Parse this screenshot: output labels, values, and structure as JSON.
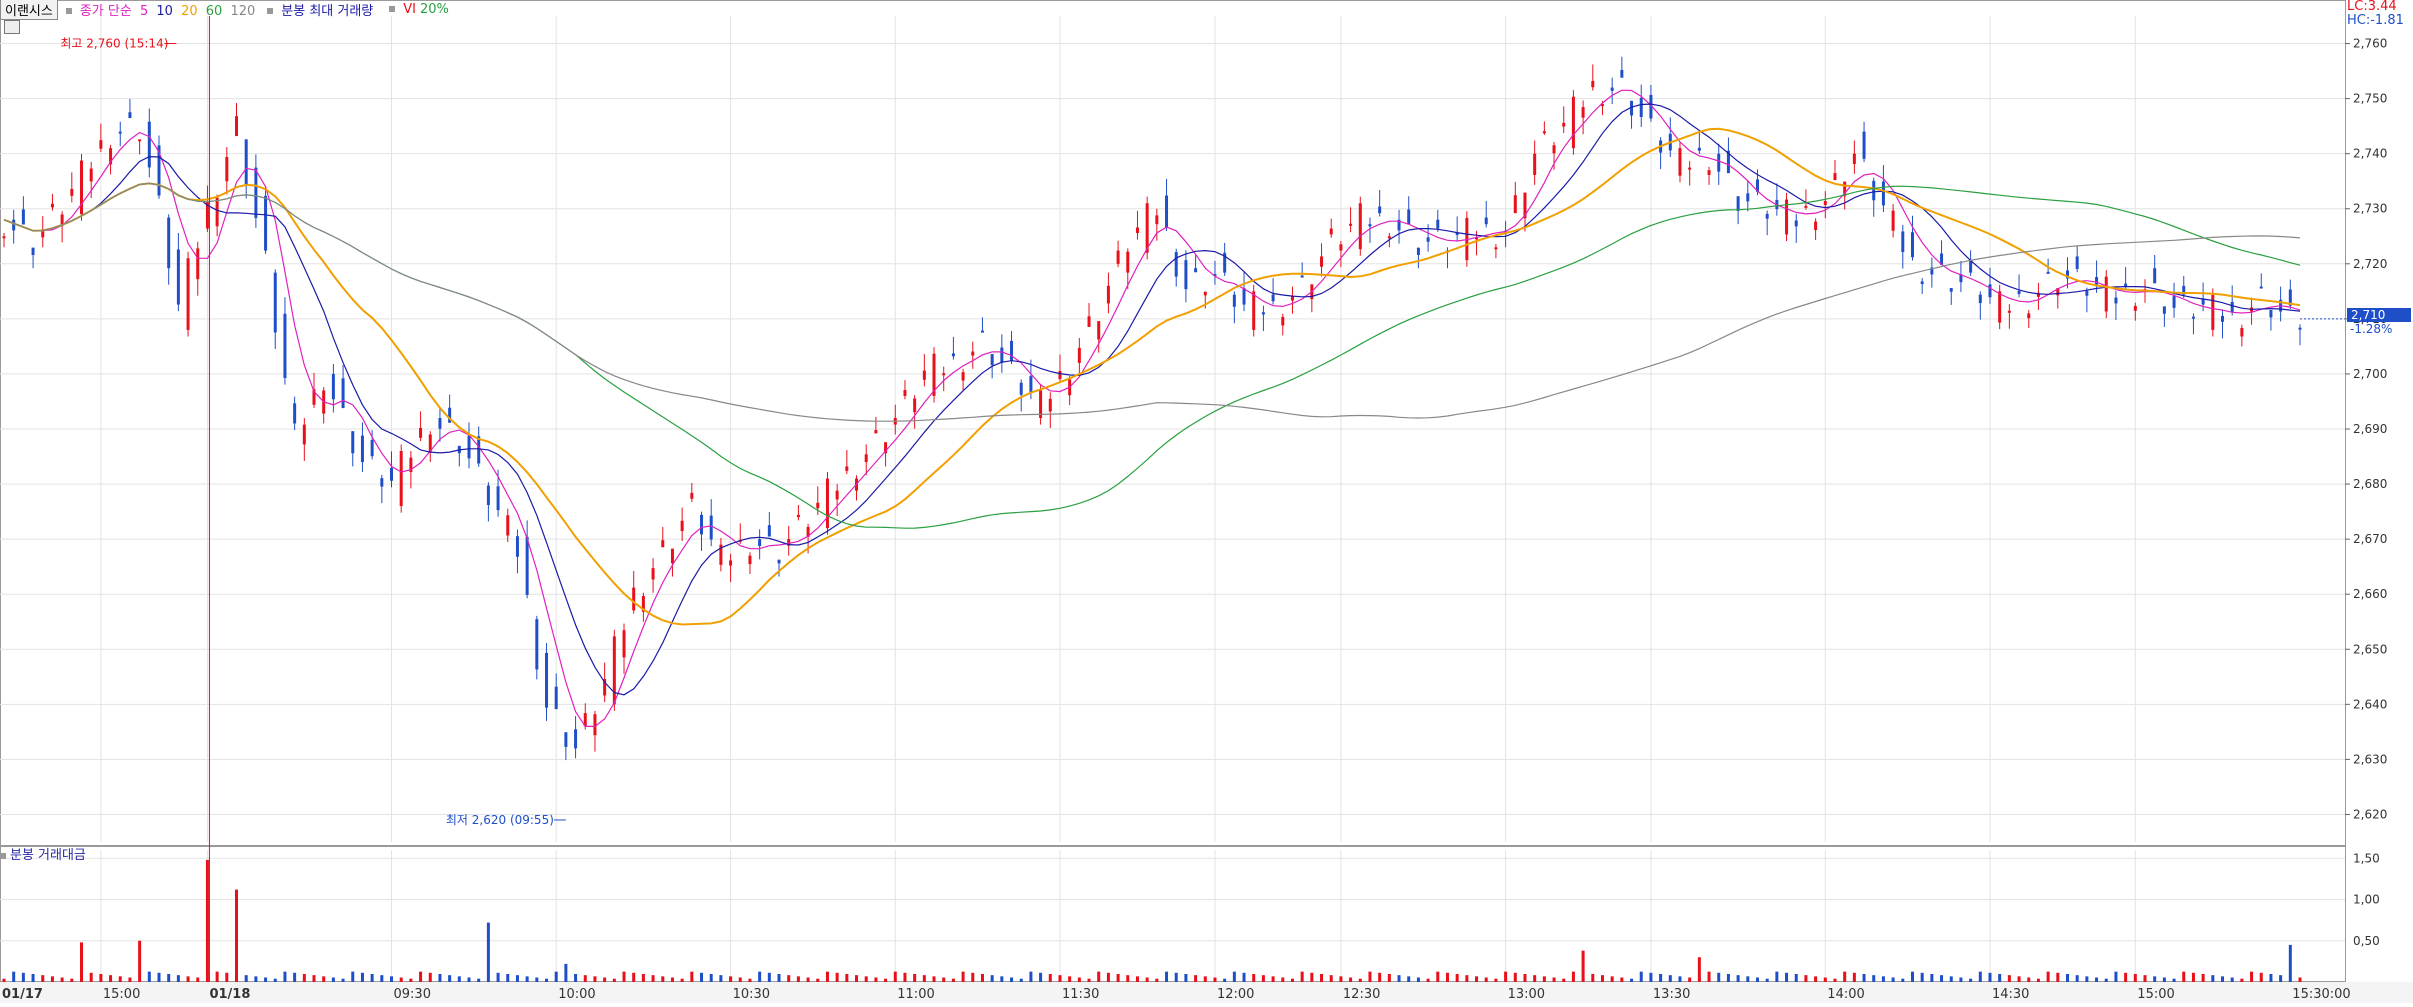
{
  "legend": {
    "name": "이랜시스",
    "ma_label": "종가 단순",
    "ma_periods": [
      "5",
      "10",
      "20",
      "60",
      "120"
    ],
    "ma_colors": [
      "#e020c0",
      "#1a1aa8",
      "#f0a000",
      "#2aa040",
      "#888888"
    ],
    "vol_max_label": "분봉 최대 거래량",
    "vi_label": "VI",
    "vi_value": "20%"
  },
  "volume_legend": "분봉 거래대금",
  "tags": {
    "lc": "LC:3.44",
    "hc": "HC:-1.81"
  },
  "current": {
    "price": "2,710",
    "change": "-1.28%"
  },
  "annotations": {
    "high": "최고 2,760 (15:14)",
    "low": "최저 2,620 (09:55)"
  },
  "colors": {
    "up": "#e8101a",
    "down": "#1f4fc8",
    "grid": "#e3e3e3",
    "vline": "#e8101a",
    "bg": "#ffffff"
  },
  "chart_data": {
    "type": "candlestick",
    "title": "",
    "y_ticks": [
      "2,760",
      "2,750",
      "2,740",
      "2,730",
      "2,720",
      "2,710",
      "2,700",
      "2,690",
      "2,680",
      "2,670",
      "2,660",
      "2,650",
      "2,640",
      "2,630",
      "2,620"
    ],
    "ylim": [
      2615,
      2765
    ],
    "x_ticks": [
      "01/17",
      "15:00",
      "01/18",
      "09:30",
      "10:00",
      "10:30",
      "11:00",
      "11:30",
      "12:00",
      "12:30",
      "13:00",
      "13:30",
      "14:00",
      "14:30",
      "15:00",
      "15:30:00"
    ],
    "vol_ticks": [
      "1,50",
      "1,00",
      "0,50"
    ],
    "vol_ylim": [
      0,
      1.6
    ],
    "close_anchors": [
      [
        0,
        2728
      ],
      [
        3,
        2724
      ],
      [
        7,
        2733
      ],
      [
        11,
        2744
      ],
      [
        14,
        2745
      ],
      [
        16,
        2730
      ],
      [
        18,
        2712
      ],
      [
        21,
        2730
      ],
      [
        24,
        2745
      ],
      [
        27,
        2720
      ],
      [
        30,
        2688
      ],
      [
        33,
        2700
      ],
      [
        37,
        2684
      ],
      [
        40,
        2680
      ],
      [
        44,
        2692
      ],
      [
        47,
        2688
      ],
      [
        50,
        2678
      ],
      [
        53,
        2668
      ],
      [
        56,
        2640
      ],
      [
        59,
        2632
      ],
      [
        62,
        2644
      ],
      [
        65,
        2660
      ],
      [
        68,
        2668
      ],
      [
        71,
        2676
      ],
      [
        74,
        2666
      ],
      [
        77,
        2670
      ],
      [
        80,
        2668
      ],
      [
        83,
        2674
      ],
      [
        86,
        2680
      ],
      [
        89,
        2686
      ],
      [
        92,
        2692
      ],
      [
        95,
        2700
      ],
      [
        98,
        2702
      ],
      [
        101,
        2706
      ],
      [
        104,
        2700
      ],
      [
        107,
        2694
      ],
      [
        110,
        2702
      ],
      [
        113,
        2712
      ],
      [
        116,
        2724
      ],
      [
        119,
        2730
      ],
      [
        122,
        2716
      ],
      [
        125,
        2718
      ],
      [
        128,
        2712
      ],
      [
        131,
        2712
      ],
      [
        134,
        2716
      ],
      [
        137,
        2724
      ],
      [
        140,
        2728
      ],
      [
        143,
        2728
      ],
      [
        146,
        2724
      ],
      [
        149,
        2724
      ],
      [
        152,
        2726
      ],
      [
        155,
        2726
      ],
      [
        158,
        2740
      ],
      [
        161,
        2745
      ],
      [
        164,
        2752
      ],
      [
        167,
        2752
      ],
      [
        170,
        2744
      ],
      [
        173,
        2738
      ],
      [
        176,
        2740
      ],
      [
        179,
        2732
      ],
      [
        182,
        2730
      ],
      [
        185,
        2728
      ],
      [
        188,
        2732
      ],
      [
        191,
        2740
      ],
      [
        194,
        2730
      ],
      [
        197,
        2720
      ],
      [
        200,
        2718
      ],
      [
        203,
        2716
      ],
      [
        206,
        2712
      ],
      [
        209,
        2714
      ],
      [
        212,
        2718
      ],
      [
        215,
        2716
      ],
      [
        218,
        2714
      ],
      [
        221,
        2716
      ],
      [
        224,
        2712
      ],
      [
        227,
        2712
      ],
      [
        230,
        2710
      ],
      [
        233,
        2714
      ],
      [
        236,
        2710
      ]
    ],
    "high_label_index": 18,
    "low_label_index": 58,
    "volume_spikes": [
      [
        21,
        1.48
      ],
      [
        24,
        1.12
      ],
      [
        50,
        0.72
      ],
      [
        8,
        0.48
      ],
      [
        14,
        0.5
      ],
      [
        236,
        0.45
      ],
      [
        163,
        0.38
      ],
      [
        175,
        0.3
      ],
      [
        58,
        0.22
      ]
    ]
  }
}
